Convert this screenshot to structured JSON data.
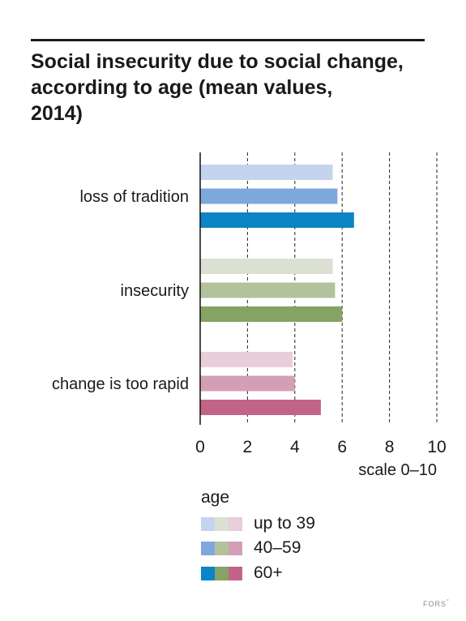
{
  "title_lines": [
    "Social insecurity due to social change,",
    "according to age (mean values,",
    "2014)"
  ],
  "brand": {
    "name": "FORS",
    "mark": "°"
  },
  "chart_data": {
    "type": "bar",
    "orientation": "horizontal",
    "title": "Social insecurity due to social change, according to age (mean values, 2014)",
    "categories": [
      "loss of tradition",
      "insecurity",
      "change is too rapid"
    ],
    "series": [
      {
        "name": "up to 39",
        "values": [
          5.6,
          5.6,
          3.9
        ],
        "colors": [
          "#c5d4ee",
          "#dbe0d3",
          "#e9cdd8"
        ]
      },
      {
        "name": "40–59",
        "values": [
          5.8,
          5.7,
          4.0
        ],
        "colors": [
          "#7ea8dc",
          "#b2c29d",
          "#d49fb5"
        ]
      },
      {
        "name": "60+",
        "values": [
          6.5,
          6.0,
          5.1
        ],
        "colors": [
          "#0c84c6",
          "#84a364",
          "#c26488"
        ]
      }
    ],
    "xlabel": "scale 0–10",
    "xlim": [
      0,
      10
    ],
    "xticks": [
      "0",
      "2",
      "4",
      "6",
      "8",
      "10"
    ],
    "grid": "dashed vertical",
    "legend": {
      "title": "age",
      "placement": "bottom"
    }
  }
}
